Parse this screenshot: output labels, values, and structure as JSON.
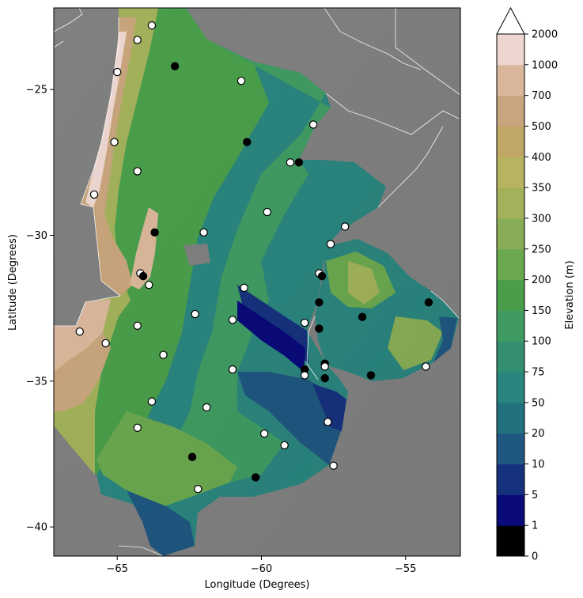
{
  "map": {
    "xlabel": "Longitude (Degrees)",
    "ylabel": "Latitude (Degrees)",
    "x_ticks": [
      {
        "value": -65,
        "label": "−65"
      },
      {
        "value": -60,
        "label": "−60"
      },
      {
        "value": -55,
        "label": "−55"
      }
    ],
    "y_ticks": [
      {
        "value": -25,
        "label": "−25"
      },
      {
        "value": -30,
        "label": "−30"
      },
      {
        "value": -35,
        "label": "−35"
      },
      {
        "value": -40,
        "label": "−40"
      }
    ],
    "xlim": [
      -67.2,
      -53.1
    ],
    "ylim": [
      -41.0,
      -22.2
    ],
    "background_color": "#808080",
    "station_symbols": [
      {
        "type": "open",
        "fill": "#ffffff",
        "stroke": "#000000"
      },
      {
        "type": "filled",
        "fill": "#000000",
        "stroke": "#000000"
      }
    ],
    "stations": [
      {
        "lon": -63.8,
        "lat": -22.8,
        "type": "open"
      },
      {
        "lon": -64.3,
        "lat": -23.3,
        "type": "open"
      },
      {
        "lon": -63.0,
        "lat": -24.2,
        "type": "filled"
      },
      {
        "lon": -65.0,
        "lat": -24.4,
        "type": "open"
      },
      {
        "lon": -60.7,
        "lat": -24.7,
        "type": "open"
      },
      {
        "lon": -58.2,
        "lat": -26.2,
        "type": "open"
      },
      {
        "lon": -65.1,
        "lat": -26.8,
        "type": "open"
      },
      {
        "lon": -60.5,
        "lat": -26.8,
        "type": "filled"
      },
      {
        "lon": -59.0,
        "lat": -27.5,
        "type": "open"
      },
      {
        "lon": -58.7,
        "lat": -27.5,
        "type": "filled"
      },
      {
        "lon": -64.3,
        "lat": -27.8,
        "type": "open"
      },
      {
        "lon": -65.8,
        "lat": -28.6,
        "type": "open"
      },
      {
        "lon": -59.8,
        "lat": -29.2,
        "type": "open"
      },
      {
        "lon": -57.1,
        "lat": -29.7,
        "type": "open"
      },
      {
        "lon": -63.7,
        "lat": -29.9,
        "type": "filled"
      },
      {
        "lon": -62.0,
        "lat": -29.9,
        "type": "open"
      },
      {
        "lon": -57.6,
        "lat": -30.3,
        "type": "open"
      },
      {
        "lon": -64.2,
        "lat": -31.3,
        "type": "open"
      },
      {
        "lon": -64.1,
        "lat": -31.4,
        "type": "filled"
      },
      {
        "lon": -58.0,
        "lat": -31.3,
        "type": "open"
      },
      {
        "lon": -57.9,
        "lat": -31.4,
        "type": "filled"
      },
      {
        "lon": -63.9,
        "lat": -31.7,
        "type": "open"
      },
      {
        "lon": -60.6,
        "lat": -31.8,
        "type": "open"
      },
      {
        "lon": -58.0,
        "lat": -32.3,
        "type": "filled"
      },
      {
        "lon": -54.2,
        "lat": -32.3,
        "type": "filled"
      },
      {
        "lon": -62.3,
        "lat": -32.7,
        "type": "open"
      },
      {
        "lon": -56.5,
        "lat": -32.8,
        "type": "filled"
      },
      {
        "lon": -61.0,
        "lat": -32.9,
        "type": "open"
      },
      {
        "lon": -58.5,
        "lat": -33.0,
        "type": "open"
      },
      {
        "lon": -64.3,
        "lat": -33.1,
        "type": "open"
      },
      {
        "lon": -58.0,
        "lat": -33.2,
        "type": "filled"
      },
      {
        "lon": -66.3,
        "lat": -33.3,
        "type": "open"
      },
      {
        "lon": -65.4,
        "lat": -33.7,
        "type": "open"
      },
      {
        "lon": -63.4,
        "lat": -34.1,
        "type": "open"
      },
      {
        "lon": -57.8,
        "lat": -34.4,
        "type": "filled"
      },
      {
        "lon": -57.8,
        "lat": -34.5,
        "type": "open"
      },
      {
        "lon": -54.3,
        "lat": -34.5,
        "type": "open"
      },
      {
        "lon": -61.0,
        "lat": -34.6,
        "type": "open"
      },
      {
        "lon": -58.5,
        "lat": -34.6,
        "type": "filled"
      },
      {
        "lon": -58.5,
        "lat": -34.8,
        "type": "open"
      },
      {
        "lon": -56.2,
        "lat": -34.8,
        "type": "filled"
      },
      {
        "lon": -57.8,
        "lat": -34.9,
        "type": "filled"
      },
      {
        "lon": -63.8,
        "lat": -35.7,
        "type": "open"
      },
      {
        "lon": -61.9,
        "lat": -35.9,
        "type": "open"
      },
      {
        "lon": -57.7,
        "lat": -36.4,
        "type": "open"
      },
      {
        "lon": -64.3,
        "lat": -36.6,
        "type": "open"
      },
      {
        "lon": -59.9,
        "lat": -36.8,
        "type": "open"
      },
      {
        "lon": -59.2,
        "lat": -37.2,
        "type": "open"
      },
      {
        "lon": -62.4,
        "lat": -37.6,
        "type": "filled"
      },
      {
        "lon": -57.5,
        "lat": -37.9,
        "type": "open"
      },
      {
        "lon": -60.2,
        "lat": -38.3,
        "type": "filled"
      },
      {
        "lon": -62.2,
        "lat": -38.7,
        "type": "open"
      }
    ]
  },
  "colorbar": {
    "label": "Elevation (m)",
    "extend": "max",
    "levels": [
      "0",
      "1",
      "5",
      "10",
      "20",
      "50",
      "75",
      "100",
      "150",
      "200",
      "250",
      "300",
      "350",
      "400",
      "500",
      "700",
      "1000",
      "2000"
    ],
    "colors": [
      "#000000",
      "#0a0a7a",
      "#16327d",
      "#1f5780",
      "#21717f",
      "#2a857e",
      "#338f6f",
      "#3f9b62",
      "#4a9e4a",
      "#6aa84f",
      "#88ad56",
      "#a2b15a",
      "#b6b45e",
      "#bfa866",
      "#c8a57c",
      "#dab79b",
      "#edd6d0"
    ],
    "extend_color": "#ffffff"
  }
}
